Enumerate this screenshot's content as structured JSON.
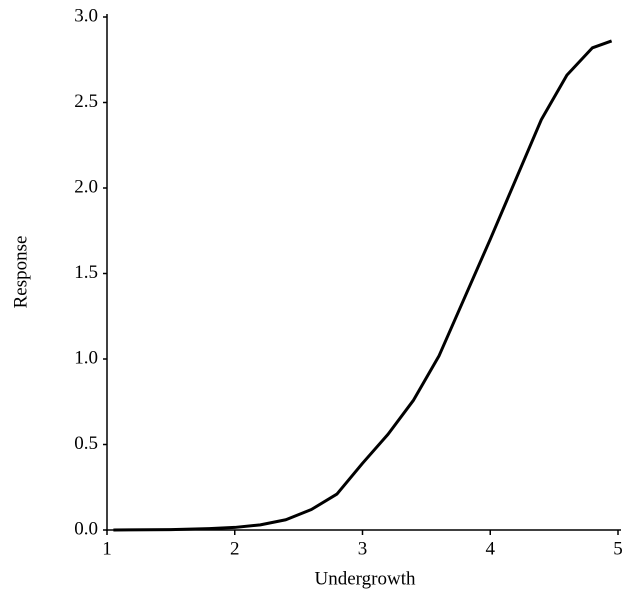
{
  "chart_data": {
    "type": "line",
    "x_label": "Undergrowth",
    "y_label": "Response",
    "x": [
      1.05,
      1.5,
      1.8,
      2.0,
      2.2,
      2.4,
      2.6,
      2.8,
      3.0,
      3.2,
      3.4,
      3.6,
      3.8,
      4.0,
      4.2,
      4.4,
      4.6,
      4.8,
      4.95
    ],
    "values": [
      0,
      0.002,
      0.008,
      0.015,
      0.03,
      0.06,
      0.12,
      0.21,
      0.39,
      0.56,
      0.76,
      1.02,
      1.36,
      1.7,
      2.05,
      2.4,
      2.66,
      2.82,
      2.86
    ],
    "color": "#000000",
    "xlim": [
      1,
      5
    ],
    "xticks": [
      1,
      2,
      3,
      4,
      5
    ],
    "ylim": [
      0,
      3
    ],
    "yticks": [
      {
        "value": 0,
        "label": "0.0"
      },
      0.5,
      {
        "value": 1,
        "label": "1.0"
      },
      1.5,
      {
        "value": 2,
        "label": "2.0"
      },
      2.5,
      {
        "value": 3,
        "label": "3.0"
      }
    ],
    "grid": false
  }
}
